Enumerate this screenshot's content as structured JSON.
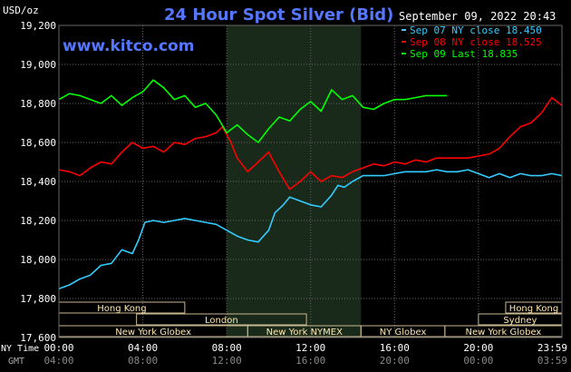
{
  "chart_data": {
    "type": "line",
    "title": "24 Hour Spot Silver (Bid)",
    "website": "www.kitco.com",
    "timestamp": "September 09, 2022 20:43",
    "ylabel": "USD/oz",
    "ylim": [
      17.6,
      19.2
    ],
    "yticks": [
      "19,200",
      "19,000",
      "18,800",
      "18,600",
      "18,400",
      "18,200",
      "18,000",
      "17,800",
      "17,600"
    ],
    "x_row1_label": "NY Time",
    "x_row2_label": "GMT",
    "x_ticks_ny": [
      "00:00",
      "04:00",
      "08:00",
      "12:00",
      "16:00",
      "20:00",
      "23:59"
    ],
    "x_ticks_gmt": [
      "04:00",
      "08:00",
      "12:00",
      "16:00",
      "20:00",
      "00:00",
      "03:59"
    ],
    "legend": [
      {
        "text": "Sep 07 NY close 18.450",
        "color": "#33ccff"
      },
      {
        "text": "Sep 08 NY close 18.525",
        "color": "#ff0000"
      },
      {
        "text": "Sep 09 Last 18.835",
        "color": "#00ff00"
      }
    ],
    "nymex_shading": {
      "from_hour": 8,
      "to_hour": 14.4
    },
    "series": [
      {
        "color": "#33ccff",
        "x": [
          0,
          0.5,
          1,
          1.5,
          2,
          2.5,
          3,
          3.5,
          3.8,
          4.1,
          4.5,
          5,
          5.5,
          6,
          6.5,
          7,
          7.5,
          8,
          8.5,
          9,
          9.5,
          10,
          10.3,
          10.7,
          11,
          11.5,
          12,
          12.5,
          13,
          13.3,
          13.6,
          14,
          14.5,
          15,
          15.5,
          16,
          16.5,
          17,
          17.5,
          18,
          18.5,
          19,
          19.5,
          20,
          20.5,
          21,
          21.5,
          22,
          22.5,
          23,
          23.5,
          23.98
        ],
        "values": [
          17.85,
          17.87,
          17.9,
          17.92,
          17.97,
          17.98,
          18.05,
          18.03,
          18.1,
          18.19,
          18.2,
          18.19,
          18.2,
          18.21,
          18.2,
          18.19,
          18.18,
          18.15,
          18.12,
          18.1,
          18.09,
          18.15,
          18.24,
          18.28,
          18.32,
          18.3,
          18.28,
          18.27,
          18.33,
          18.38,
          18.37,
          18.4,
          18.43,
          18.43,
          18.43,
          18.44,
          18.45,
          18.45,
          18.45,
          18.46,
          18.45,
          18.45,
          18.46,
          18.44,
          18.42,
          18.44,
          18.42,
          18.44,
          18.43,
          18.43,
          18.44,
          18.43
        ]
      },
      {
        "color": "#ff0000",
        "x": [
          0,
          0.5,
          1,
          1.5,
          2,
          2.5,
          3,
          3.5,
          4,
          4.5,
          5,
          5.5,
          6,
          6.5,
          7,
          7.5,
          7.8,
          8.2,
          8.5,
          9,
          9.5,
          10,
          10.5,
          11,
          11.5,
          12,
          12.5,
          13,
          13.5,
          14,
          14.5,
          15,
          15.5,
          16,
          16.5,
          17,
          17.5,
          18,
          18.5,
          19,
          19.5,
          20,
          20.5,
          21,
          21.5,
          22,
          22.5,
          23,
          23.5,
          23.98
        ],
        "values": [
          18.46,
          18.45,
          18.43,
          18.47,
          18.5,
          18.49,
          18.55,
          18.6,
          18.57,
          18.58,
          18.55,
          18.6,
          18.59,
          18.62,
          18.63,
          18.65,
          18.68,
          18.6,
          18.52,
          18.45,
          18.5,
          18.55,
          18.45,
          18.36,
          18.4,
          18.45,
          18.4,
          18.43,
          18.42,
          18.45,
          18.47,
          18.49,
          18.48,
          18.5,
          18.49,
          18.51,
          18.5,
          18.52,
          18.52,
          18.52,
          18.52,
          18.53,
          18.54,
          18.57,
          18.63,
          18.68,
          18.7,
          18.75,
          18.83,
          18.79
        ]
      },
      {
        "color": "#00ff00",
        "x": [
          0,
          0.5,
          1,
          1.5,
          2,
          2.5,
          3,
          3.5,
          4,
          4.5,
          5,
          5.5,
          6,
          6.5,
          7,
          7.5,
          8,
          8.5,
          9,
          9.5,
          10,
          10.5,
          11,
          11.5,
          12,
          12.5,
          13,
          13.5,
          14,
          14.5,
          15,
          15.5,
          16,
          16.5,
          17,
          17.5,
          18,
          18.5
        ],
        "values": [
          18.82,
          18.85,
          18.84,
          18.82,
          18.8,
          18.84,
          18.79,
          18.83,
          18.86,
          18.92,
          18.88,
          18.82,
          18.84,
          18.78,
          18.8,
          18.74,
          18.65,
          18.69,
          18.64,
          18.6,
          18.67,
          18.73,
          18.71,
          18.77,
          18.81,
          18.76,
          18.87,
          18.82,
          18.84,
          18.78,
          18.77,
          18.8,
          18.82,
          18.82,
          18.83,
          18.84,
          18.84,
          18.84
        ]
      }
    ]
  },
  "market_bars": [
    {
      "label": "Hong Kong",
      "from": 0,
      "to": 6
    },
    {
      "label": "Hong Kong",
      "from": 21.3,
      "to": 23.98
    },
    {
      "label": "London",
      "from": 3.7,
      "to": 11.8
    },
    {
      "label": "Sydney",
      "from": 20,
      "to": 23.98
    },
    {
      "label": "New York Globex",
      "from": 0,
      "to": 9
    },
    {
      "label": "New York NYMEX",
      "from": 9,
      "to": 14.4
    },
    {
      "label": "NY Globex",
      "from": 14.4,
      "to": 18.4
    },
    {
      "label": "New York Globex",
      "from": 18.4,
      "to": 23.98
    }
  ]
}
